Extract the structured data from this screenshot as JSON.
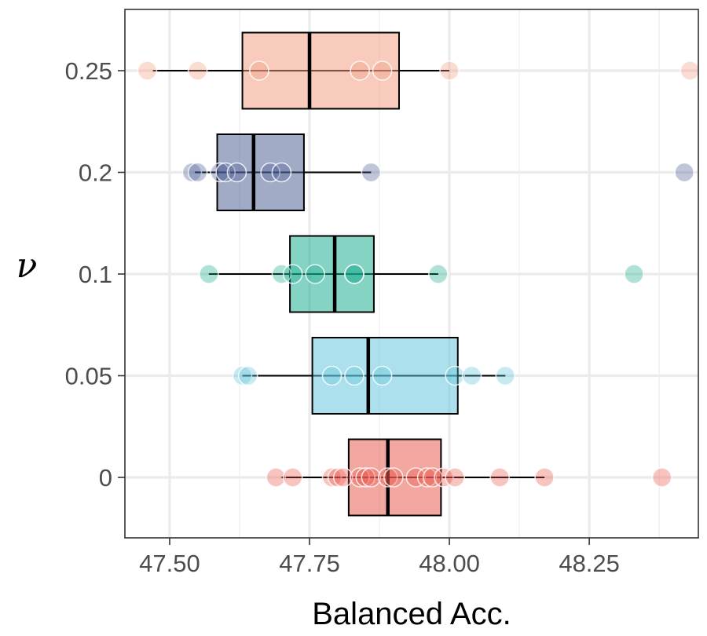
{
  "chart_data": {
    "type": "boxplot",
    "orientation": "horizontal",
    "xlabel": "Balanced Acc.",
    "ylabel": "ν",
    "xlim": [
      47.42,
      48.445
    ],
    "x_ticks": [
      47.5,
      47.75,
      48.0,
      48.25
    ],
    "x_tick_labels": [
      "47.50",
      "47.75",
      "48.00",
      "48.25"
    ],
    "grid": true,
    "series": [
      {
        "name": "0",
        "color": "#E8574A",
        "box": {
          "whisker_low": 47.7,
          "q1": 47.82,
          "median": 47.89,
          "q3": 47.985,
          "whisker_high": 48.17
        },
        "points": [
          47.69,
          47.72,
          47.79,
          47.8,
          47.81,
          47.84,
          47.85,
          47.86,
          47.89,
          47.9,
          47.94,
          47.96,
          47.97,
          47.99,
          48.01,
          48.09,
          48.17,
          48.38
        ]
      },
      {
        "name": "0.05",
        "color": "#5FC3DA",
        "box": {
          "whisker_low": 47.63,
          "q1": 47.755,
          "median": 47.855,
          "q3": 48.015,
          "whisker_high": 48.1
        },
        "points": [
          47.63,
          47.64,
          47.79,
          47.83,
          47.88,
          48.01,
          48.04,
          48.1
        ]
      },
      {
        "name": "0.1",
        "color": "#16AB8C",
        "box": {
          "whisker_low": 47.57,
          "q1": 47.715,
          "median": 47.795,
          "q3": 47.865,
          "whisker_high": 47.98
        },
        "points": [
          47.57,
          47.7,
          47.72,
          47.76,
          47.83,
          47.83,
          47.98,
          48.33
        ]
      },
      {
        "name": "0.2",
        "color": "#4A5D91",
        "box": {
          "whisker_low": 47.545,
          "q1": 47.585,
          "median": 47.65,
          "q3": 47.74,
          "whisker_high": 47.86
        },
        "points": [
          47.54,
          47.55,
          47.59,
          47.6,
          47.62,
          47.68,
          47.7,
          47.86,
          48.42
        ]
      },
      {
        "name": "0.25",
        "color": "#F29C7F",
        "box": {
          "whisker_low": 47.47,
          "q1": 47.63,
          "median": 47.75,
          "q3": 47.91,
          "whisker_high": 48.0
        },
        "points": [
          47.46,
          47.55,
          47.66,
          47.84,
          47.88,
          48.0,
          48.43
        ]
      }
    ]
  }
}
